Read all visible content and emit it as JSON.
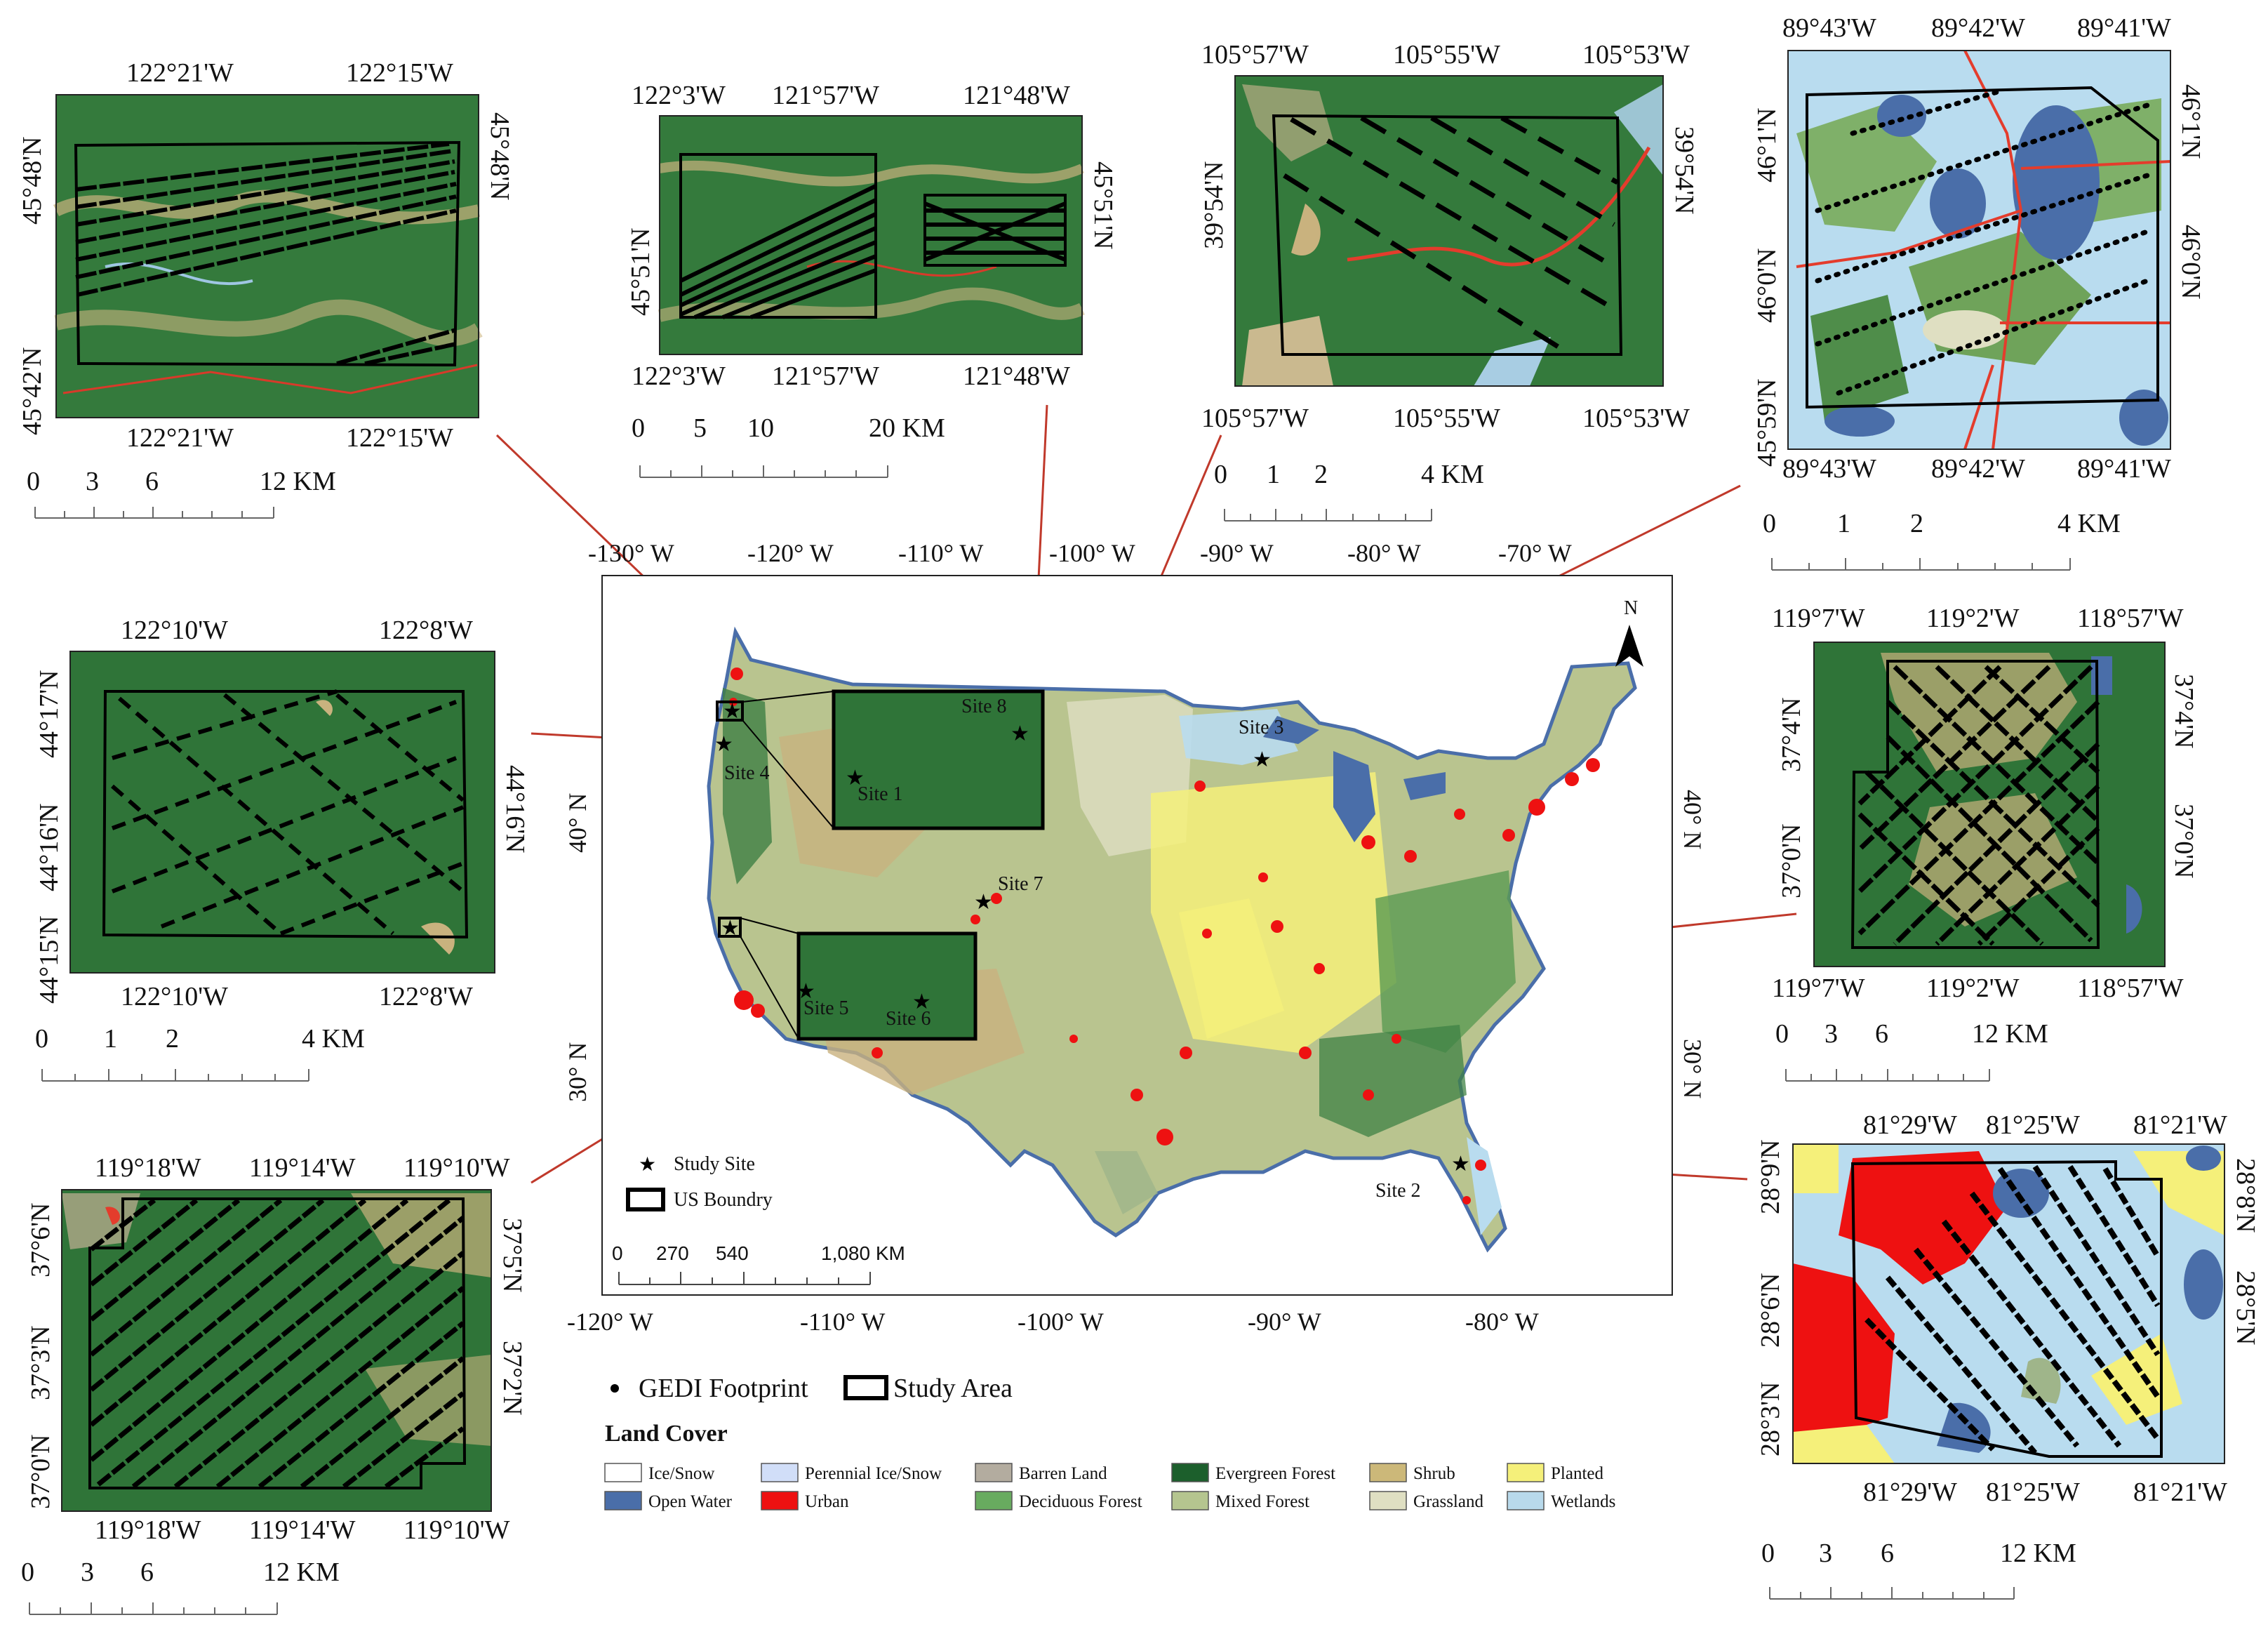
{
  "insets": {
    "site1": {
      "top": [
        "122°21'W",
        "122°15'W"
      ],
      "bottom": [
        "122°21'W",
        "122°15'W"
      ],
      "left": [
        "45°48'N",
        "45°42'N"
      ],
      "right": [
        "45°48'N"
      ],
      "scale": [
        "0",
        "3",
        "6",
        "12 KM"
      ]
    },
    "site8": {
      "top": [
        "122°3'W",
        "121°57'W",
        "121°48'W"
      ],
      "bottom": [
        "122°3'W",
        "121°57'W",
        "121°48'W"
      ],
      "left": [
        "45°51'N"
      ],
      "right": [
        "45°51'N"
      ],
      "scale": [
        "0",
        "5",
        "10",
        "20 KM"
      ]
    },
    "site7": {
      "top": [
        "105°57'W",
        "105°55'W",
        "105°53'W"
      ],
      "bottom": [
        "105°57'W",
        "105°55'W",
        "105°53'W"
      ],
      "left": [
        "39°54'N"
      ],
      "right": [
        "39°54'N"
      ],
      "scale": [
        "0",
        "1",
        "2",
        "4 KM"
      ]
    },
    "site3": {
      "top": [
        "89°43'W",
        "89°42'W",
        "89°41'W"
      ],
      "bottom": [
        "89°43'W",
        "89°42'W",
        "89°41'W"
      ],
      "left": [
        "46°1'N",
        "46°0'N",
        "45°59'N"
      ],
      "right": [
        "46°1'N",
        "46°0'N"
      ],
      "scale": [
        "0",
        "1",
        "2",
        "4 KM"
      ]
    },
    "site4": {
      "top": [
        "122°10'W",
        "122°8'W"
      ],
      "bottom": [
        "122°10'W",
        "122°8'W"
      ],
      "left": [
        "44°17'N",
        "44°16'N",
        "44°15'N"
      ],
      "right": [
        "44°16'N"
      ],
      "scale": [
        "0",
        "1",
        "2",
        "4 KM"
      ]
    },
    "site6": {
      "top": [
        "119°7'W",
        "119°2'W",
        "118°57'W"
      ],
      "bottom": [
        "119°7'W",
        "119°2'W",
        "118°57'W"
      ],
      "left": [
        "37°4'N",
        "37°0'N"
      ],
      "right": [
        "37°4'N",
        "37°0'N"
      ],
      "scale": [
        "0",
        "3",
        "6",
        "12 KM"
      ]
    },
    "site5": {
      "top": [
        "119°18'W",
        "119°14'W",
        "119°10'W"
      ],
      "bottom": [
        "119°18'W",
        "119°14'W",
        "119°10'W"
      ],
      "left": [
        "37°6'N",
        "37°3'N",
        "37°0'N"
      ],
      "right": [
        "37°5'N",
        "37°2'N"
      ],
      "scale": [
        "0",
        "3",
        "6",
        "12 KM"
      ]
    },
    "site2": {
      "top": [
        "81°29'W",
        "81°25'W",
        "81°21'W"
      ],
      "bottom": [
        "81°29'W",
        "81°25'W",
        "81°21'W"
      ],
      "left": [
        "28°9'N",
        "28°6'N",
        "28°3'N"
      ],
      "right": [
        "28°8'N",
        "28°5'N"
      ],
      "scale": [
        "0",
        "3",
        "6",
        "12 KM"
      ]
    }
  },
  "main_map": {
    "top_lon": [
      "-130° W",
      "-120° W",
      "-110° W",
      "-100° W",
      "-90° W",
      "-80° W",
      "-70° W"
    ],
    "bottom_lon": [
      "-120° W",
      "-110° W",
      "-100° W",
      "-90° W",
      "-80° W"
    ],
    "left_lat": [
      "40° N",
      "30° N"
    ],
    "right_lat": [
      "40° N",
      "30° N"
    ],
    "north_label": "N",
    "sites": [
      "Site 1",
      "Site 2",
      "Site 3",
      "Site 4",
      "Site 5",
      "Site 6",
      "Site 7",
      "Site 8"
    ],
    "legend_study_site": "Study Site",
    "legend_boundary": "US Boundry",
    "scale": [
      "0",
      "270",
      "540",
      "1,080 KM"
    ]
  },
  "legend": {
    "gedi_footprint": "GEDI Footprint",
    "study_area": "Study Area",
    "title": "Land Cover",
    "classes": [
      {
        "label": "Ice/Snow",
        "color": "#ffffff"
      },
      {
        "label": "Open Water",
        "color": "#4a6ea9"
      },
      {
        "label": "Perennial Ice/Snow",
        "color": "#d1def8"
      },
      {
        "label": "Urban",
        "color": "#ee1111"
      },
      {
        "label": "Barren Land",
        "color": "#b3ac9f"
      },
      {
        "label": "Deciduous Forest",
        "color": "#68ab5f"
      },
      {
        "label": "Evergreen Forest",
        "color": "#1c5f2c"
      },
      {
        "label": "Mixed Forest",
        "color": "#b5c58f"
      },
      {
        "label": "Shrub",
        "color": "#ccb879"
      },
      {
        "label": "Grassland",
        "color": "#dfdfc2"
      },
      {
        "label": "Planted",
        "color": "#f5f07a"
      },
      {
        "label": "Wetlands",
        "color": "#b8d9eb"
      }
    ]
  }
}
